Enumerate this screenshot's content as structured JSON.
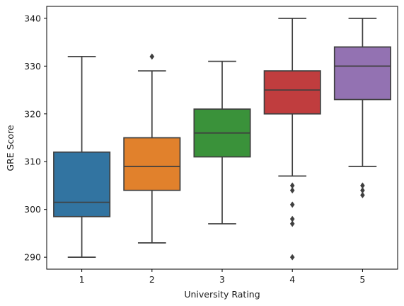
{
  "chart_data": {
    "type": "box",
    "title": "",
    "xlabel": "University Rating",
    "ylabel": "GRE Score",
    "categories": [
      "1",
      "2",
      "3",
      "4",
      "5"
    ],
    "ylim": [
      287.5,
      342.5
    ],
    "yticks": [
      290,
      300,
      310,
      320,
      330,
      340
    ],
    "grid": false,
    "legend": "none",
    "boxes": [
      {
        "category": "1",
        "color": "#3274a1",
        "whisker_low": 290,
        "q1": 298.5,
        "median": 301.5,
        "q3": 312,
        "whisker_high": 332,
        "outliers": []
      },
      {
        "category": "2",
        "color": "#e1812c",
        "whisker_low": 293,
        "q1": 304,
        "median": 309,
        "q3": 315,
        "whisker_high": 329,
        "outliers": [
          332
        ]
      },
      {
        "category": "3",
        "color": "#3a923a",
        "whisker_low": 297,
        "q1": 311,
        "median": 316,
        "q3": 321,
        "whisker_high": 331,
        "outliers": []
      },
      {
        "category": "4",
        "color": "#c03d3e",
        "whisker_low": 307,
        "q1": 320,
        "median": 325,
        "q3": 329,
        "whisker_high": 340,
        "outliers": [
          305,
          304,
          301,
          298,
          297,
          290
        ]
      },
      {
        "category": "5",
        "color": "#9372b2",
        "whisker_low": 309,
        "q1": 323,
        "median": 330,
        "q3": 334,
        "whisker_high": 340,
        "outliers": [
          305,
          304,
          303
        ]
      }
    ],
    "line_color": "#3f3f3f"
  }
}
